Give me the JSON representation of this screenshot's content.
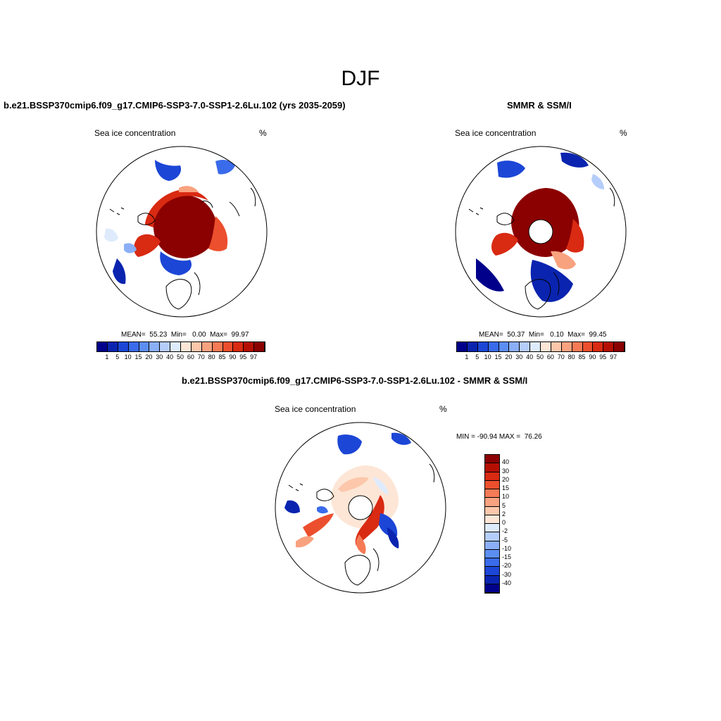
{
  "season": "DJF",
  "panels": {
    "model": {
      "title": "b.e21.BSSP370cmip6.f09_g17.CMIP6-SSP3-7.0-SSP1-2.6Lu.102 (yrs 2035-2059)",
      "variable": "Sea ice concentration",
      "units": "%",
      "stats": "MEAN=  55.23  Min=   0.00  Max=  99.97"
    },
    "obs": {
      "title": "SMMR & SSM/I",
      "variable": "Sea ice concentration",
      "units": "%",
      "stats": "MEAN=  50.37  Min=   0.10  Max=  99.45"
    },
    "diff": {
      "title": "b.e21.BSSP370cmip6.f09_g17.CMIP6-SSP3-7.0-SSP1-2.6Lu.102 - SMMR & SSM/I",
      "variable": "Sea ice concentration",
      "units": "%",
      "stats": "MIN = -90.94 MAX =  76.26"
    }
  },
  "colorbar_abs": {
    "ticks": [
      "1",
      "5",
      "10",
      "15",
      "20",
      "30",
      "40",
      "50",
      "60",
      "70",
      "80",
      "85",
      "90",
      "95",
      "97"
    ],
    "colors": [
      "#00008b",
      "#0a24b0",
      "#1c46d6",
      "#3a6bea",
      "#5c8ef2",
      "#8aaff6",
      "#b5cdfa",
      "#deebfc",
      "#fde6d6",
      "#fcc7ab",
      "#f9a27f",
      "#f57a55",
      "#ec4f2d",
      "#d92a12",
      "#b50f04",
      "#8b0000"
    ]
  },
  "colorbar_diff": {
    "ticks": [
      "40",
      "30",
      "20",
      "15",
      "10",
      "5",
      "2",
      "0",
      "-2",
      "-5",
      "-10",
      "-15",
      "-20",
      "-30",
      "-40"
    ],
    "colors": [
      "#8b0000",
      "#b50f04",
      "#d92a12",
      "#ec4f2d",
      "#f57a55",
      "#f9a27f",
      "#fcc7ab",
      "#fde6d6",
      "#deebfc",
      "#b5cdfa",
      "#8aaff6",
      "#5c8ef2",
      "#3a6bea",
      "#1c46d6",
      "#0a24b0",
      "#00008b"
    ]
  }
}
